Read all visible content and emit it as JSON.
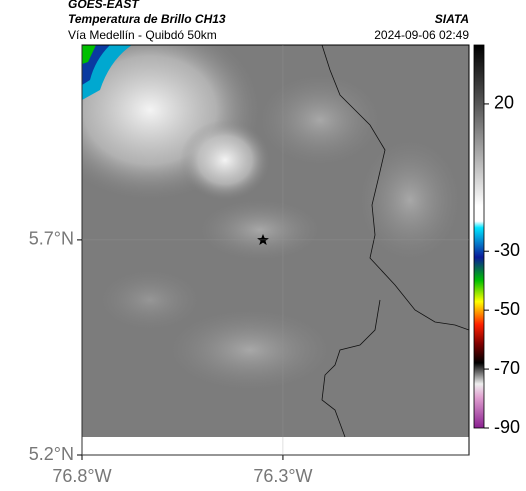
{
  "header": {
    "source": "GOES-EAST",
    "product": "Temperatura de Brillo CH13",
    "route": "Vía Medellín - Quibdó 50km",
    "agency": "SIATA",
    "datetime": "2024-09-06 02:49"
  },
  "map": {
    "xlim": [
      -76.8,
      -75.837
    ],
    "ylim": [
      5.2,
      6.153
    ],
    "xticks": [
      {
        "value": -76.8,
        "label": "76.8°W"
      },
      {
        "value": -76.3,
        "label": "76.3°W"
      }
    ],
    "yticks": [
      {
        "value": 5.7,
        "label": "5.7°N"
      },
      {
        "value": 5.2,
        "label": "5.2°N"
      }
    ],
    "grid": true
  },
  "colorbar": {
    "lim": [
      -90,
      40
    ],
    "ticks": [
      20,
      -30,
      -50,
      -70,
      -90
    ]
  }
}
